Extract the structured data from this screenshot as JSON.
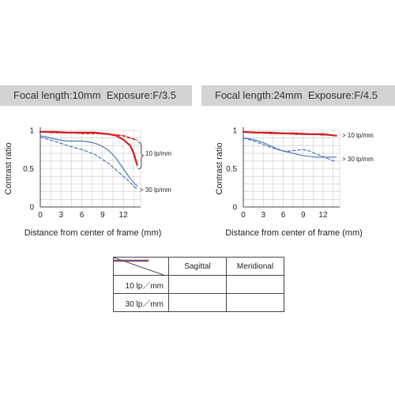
{
  "panels": [
    {
      "focal_label": "Focal length",
      "focal_value": "10mm",
      "exposure_label": "Exposure",
      "exposure_value": "F/3.5"
    },
    {
      "focal_label": "Focal length",
      "focal_value": "24mm",
      "exposure_label": "Exposure",
      "exposure_value": "F/4.5"
    }
  ],
  "colors": {
    "sagittal_10": "#d22020",
    "meridional_10": "#d22020",
    "sagittal_30": "#3d6fb5",
    "meridional_30": "#3d6fb5",
    "grid": "#c8c8c8",
    "banner": "#d3d3d3"
  },
  "legend": {
    "col_sagittal": "Sagittal",
    "col_meridional": "Meridional",
    "row_10": "10 lp／mm",
    "row_30": "30 lp／mm"
  },
  "chart_data": [
    {
      "type": "line",
      "xlabel": "Distance from center of frame (mm)",
      "ylabel": "Contrast ratio",
      "xlim": [
        0,
        14.5
      ],
      "ylim": [
        0,
        1
      ],
      "xticks": [
        "0",
        "3",
        "6",
        "9",
        "12"
      ],
      "yticks": [
        "0",
        "0.5",
        "1"
      ],
      "annotations": [
        "10 lp/mm",
        "> 30 lp/mm"
      ],
      "grid": true,
      "series": [
        {
          "key": "sagittal_10",
          "style": "solid",
          "width": 2.2,
          "x": [
            0,
            2,
            4,
            6,
            8,
            9,
            10,
            11,
            12,
            13,
            13.5,
            14
          ],
          "y": [
            0.98,
            0.98,
            0.97,
            0.97,
            0.97,
            0.96,
            0.95,
            0.93,
            0.88,
            0.8,
            0.7,
            0.55
          ]
        },
        {
          "key": "meridional_10",
          "style": "dashed",
          "width": 1.6,
          "x": [
            0,
            2,
            4,
            6,
            8,
            10,
            12,
            13,
            14
          ],
          "y": [
            0.98,
            0.97,
            0.97,
            0.96,
            0.96,
            0.95,
            0.93,
            0.9,
            0.87
          ]
        },
        {
          "key": "sagittal_30",
          "style": "solid",
          "width": 1.1,
          "x": [
            0,
            1,
            2,
            3,
            4,
            5,
            6,
            7,
            8,
            9,
            10,
            11,
            12,
            13,
            14
          ],
          "y": [
            0.93,
            0.91,
            0.89,
            0.87,
            0.86,
            0.86,
            0.86,
            0.85,
            0.83,
            0.79,
            0.73,
            0.63,
            0.5,
            0.37,
            0.27
          ]
        },
        {
          "key": "meridional_30",
          "style": "dashed",
          "width": 1.1,
          "x": [
            0,
            2,
            4,
            6,
            8,
            9,
            10,
            11,
            12,
            13,
            14
          ],
          "y": [
            0.91,
            0.86,
            0.8,
            0.75,
            0.68,
            0.62,
            0.56,
            0.48,
            0.4,
            0.32,
            0.23
          ]
        }
      ]
    },
    {
      "type": "line",
      "xlabel": "Distance from center of frame (mm)",
      "ylabel": "Contrast ratio",
      "xlim": [
        0,
        14.5
      ],
      "ylim": [
        0,
        1
      ],
      "xticks": [
        "0",
        "3",
        "6",
        "9",
        "12"
      ],
      "yticks": [
        "0",
        "0.5",
        "1"
      ],
      "annotations": [
        "> 10 lp/mm",
        "> 30 lp/mm"
      ],
      "grid": true,
      "series": [
        {
          "key": "sagittal_10",
          "style": "solid",
          "width": 2.2,
          "x": [
            0,
            2,
            4,
            6,
            8,
            10,
            12,
            13,
            14
          ],
          "y": [
            0.98,
            0.97,
            0.97,
            0.96,
            0.96,
            0.95,
            0.95,
            0.94,
            0.93
          ]
        },
        {
          "key": "meridional_10",
          "style": "dashed",
          "width": 1.6,
          "x": [
            0,
            2,
            4,
            6,
            8,
            10,
            12,
            13,
            14
          ],
          "y": [
            0.98,
            0.97,
            0.96,
            0.96,
            0.95,
            0.95,
            0.94,
            0.94,
            0.93
          ]
        },
        {
          "key": "sagittal_30",
          "style": "solid",
          "width": 1.1,
          "x": [
            0,
            1,
            2,
            3,
            4,
            5,
            6,
            7,
            8,
            9,
            10,
            11,
            12,
            13,
            14
          ],
          "y": [
            0.9,
            0.89,
            0.87,
            0.84,
            0.8,
            0.76,
            0.73,
            0.71,
            0.69,
            0.67,
            0.66,
            0.65,
            0.65,
            0.65,
            0.65
          ]
        },
        {
          "key": "meridional_30",
          "style": "dashed",
          "width": 1.1,
          "x": [
            0,
            2,
            4,
            6,
            7,
            8,
            9,
            10,
            11,
            12,
            13,
            14
          ],
          "y": [
            0.9,
            0.85,
            0.78,
            0.73,
            0.73,
            0.74,
            0.75,
            0.73,
            0.69,
            0.66,
            0.62,
            0.59
          ]
        }
      ]
    }
  ]
}
